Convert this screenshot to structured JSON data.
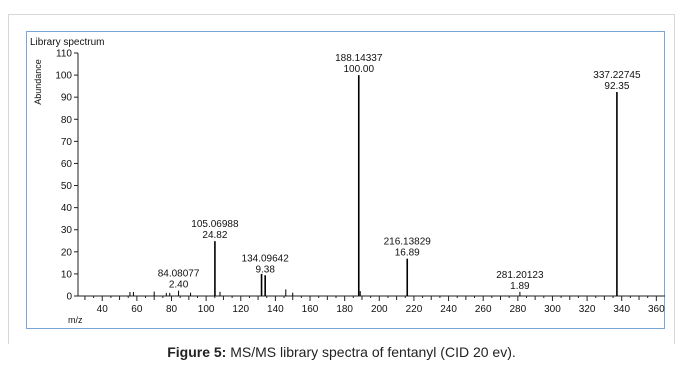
{
  "caption": {
    "label": "Figure 5:",
    "text": "MS/MS library spectra of fentanyl (CID 20 ev)."
  },
  "chart_data": {
    "type": "bar",
    "title": "Library spectrum",
    "xlabel": "m/z",
    "ylabel": "Abundance",
    "xlim": [
      26,
      365
    ],
    "ylim": [
      0,
      110
    ],
    "xticks": [
      40,
      60,
      80,
      100,
      120,
      140,
      160,
      180,
      200,
      220,
      240,
      260,
      280,
      300,
      320,
      340,
      360
    ],
    "yticks": [
      0,
      10,
      20,
      30,
      40,
      50,
      60,
      70,
      80,
      90,
      100,
      110
    ],
    "peaks": [
      {
        "mz": 56.0,
        "value": 1.8,
        "mz_label": "",
        "value_label": ""
      },
      {
        "mz": 58.0,
        "value": 1.8,
        "mz_label": "",
        "value_label": ""
      },
      {
        "mz": 70.0,
        "value": 2.0,
        "mz_label": "",
        "value_label": ""
      },
      {
        "mz": 77.0,
        "value": 1.4,
        "mz_label": "",
        "value_label": ""
      },
      {
        "mz": 79.0,
        "value": 1.4,
        "mz_label": "",
        "value_label": ""
      },
      {
        "mz": 84.08077,
        "value": 2.4,
        "mz_label": "84.08077",
        "value_label": "2.40"
      },
      {
        "mz": 91.0,
        "value": 1.5,
        "mz_label": "",
        "value_label": ""
      },
      {
        "mz": 105.06988,
        "value": 24.82,
        "mz_label": "105.06988",
        "value_label": "24.82"
      },
      {
        "mz": 108.0,
        "value": 1.9,
        "mz_label": "",
        "value_label": ""
      },
      {
        "mz": 132.0,
        "value": 10.0,
        "mz_label": "",
        "value_label": ""
      },
      {
        "mz": 134.09642,
        "value": 9.38,
        "mz_label": "134.09642",
        "value_label": "9.38"
      },
      {
        "mz": 146.0,
        "value": 3.0,
        "mz_label": "",
        "value_label": ""
      },
      {
        "mz": 150.0,
        "value": 1.5,
        "mz_label": "",
        "value_label": ""
      },
      {
        "mz": 188.14337,
        "value": 100.0,
        "mz_label": "188.14337",
        "value_label": "100.00"
      },
      {
        "mz": 189.0,
        "value": 2.2,
        "mz_label": "",
        "value_label": ""
      },
      {
        "mz": 216.13829,
        "value": 16.89,
        "mz_label": "216.13829",
        "value_label": "16.89"
      },
      {
        "mz": 281.20123,
        "value": 1.89,
        "mz_label": "281.20123",
        "value_label": "1.89"
      },
      {
        "mz": 337.22745,
        "value": 92.35,
        "mz_label": "337.22745",
        "value_label": "92.35"
      }
    ]
  }
}
